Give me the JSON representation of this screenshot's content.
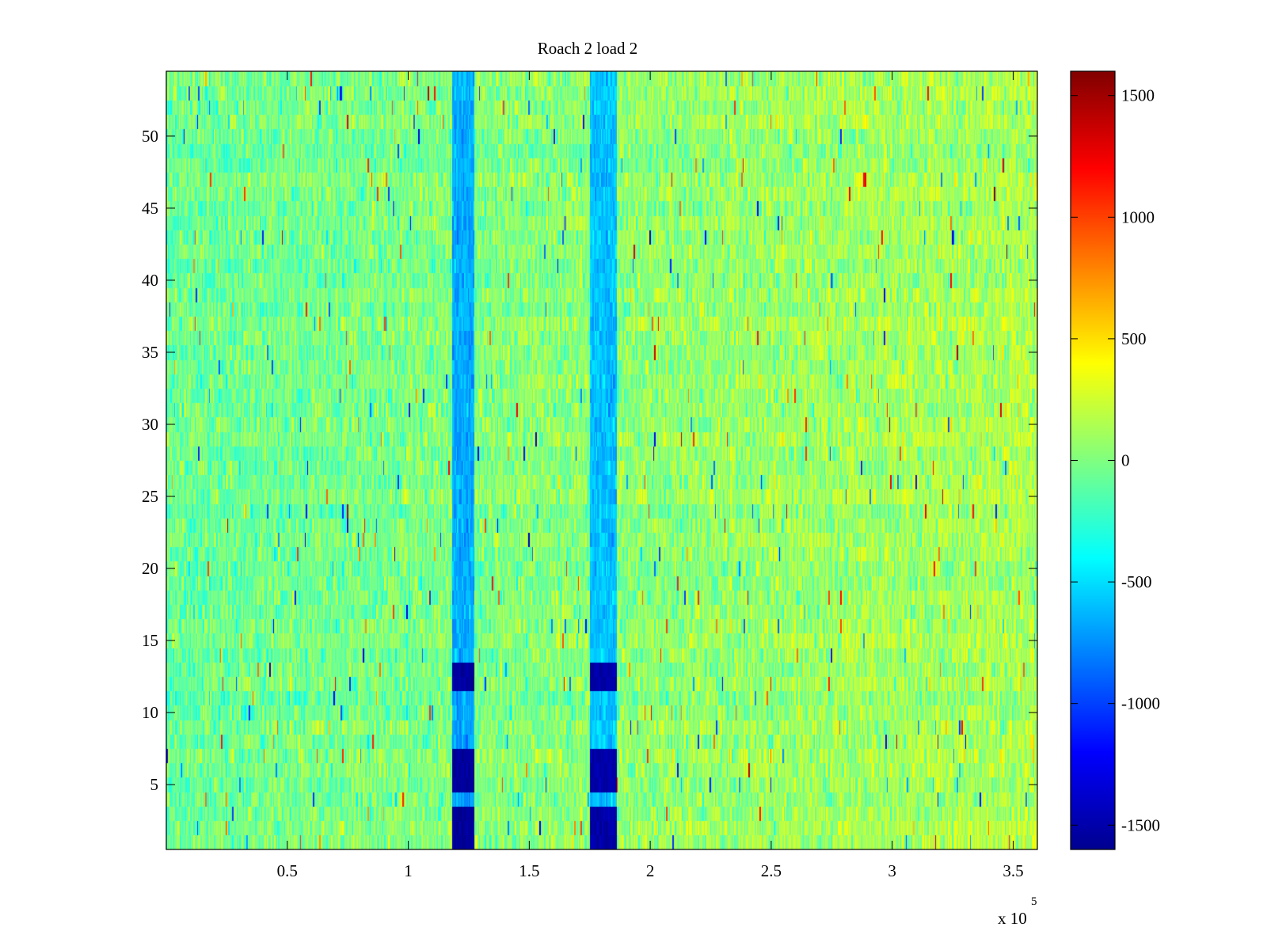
{
  "chart_data": {
    "type": "heatmap",
    "title": "Roach 2 load 2",
    "xlabel": "",
    "ylabel": "",
    "colormap": "jet",
    "x_range": [
      0,
      360000
    ],
    "y_range": [
      0.5,
      54.5
    ],
    "rows": 54,
    "columns": 720,
    "x_ticks": [
      {
        "value": 50000,
        "label": "0.5"
      },
      {
        "value": 100000,
        "label": "1"
      },
      {
        "value": 150000,
        "label": "1.5"
      },
      {
        "value": 200000,
        "label": "2"
      },
      {
        "value": 250000,
        "label": "2.5"
      },
      {
        "value": 300000,
        "label": "3"
      },
      {
        "value": 350000,
        "label": "3.5"
      }
    ],
    "x_multiplier": {
      "base": "x 10",
      "exponent": "5"
    },
    "y_ticks": [
      {
        "value": 5,
        "label": "5"
      },
      {
        "value": 10,
        "label": "10"
      },
      {
        "value": 15,
        "label": "15"
      },
      {
        "value": 20,
        "label": "20"
      },
      {
        "value": 25,
        "label": "25"
      },
      {
        "value": 30,
        "label": "30"
      },
      {
        "value": 35,
        "label": "35"
      },
      {
        "value": 40,
        "label": "40"
      },
      {
        "value": 45,
        "label": "45"
      },
      {
        "value": 50,
        "label": "50"
      }
    ],
    "colorbar": {
      "range": [
        -1600,
        1600
      ],
      "ticks": [
        {
          "value": 1500,
          "label": "1500"
        },
        {
          "value": 1000,
          "label": "1000"
        },
        {
          "value": 500,
          "label": "500"
        },
        {
          "value": 0,
          "label": "0"
        },
        {
          "value": -500,
          "label": "-500"
        },
        {
          "value": -1000,
          "label": "-1000"
        },
        {
          "value": -1500,
          "label": "-1500"
        }
      ]
    },
    "baseline": {
      "x": [
        0,
        360000
      ],
      "value": [
        -60,
        150
      ]
    },
    "noise_amplitude": 380,
    "bands": [
      {
        "x_start": 118000,
        "x_end": 127000,
        "typical_value": -650,
        "strong_value": -1500,
        "strong_rows": [
          1,
          2,
          3,
          5,
          6,
          7,
          12,
          13
        ]
      },
      {
        "x_start": 175000,
        "x_end": 186000,
        "typical_value": -580,
        "strong_value": -1450,
        "strong_rows": [
          1,
          2,
          3,
          5,
          6,
          7,
          12,
          13
        ]
      }
    ]
  }
}
